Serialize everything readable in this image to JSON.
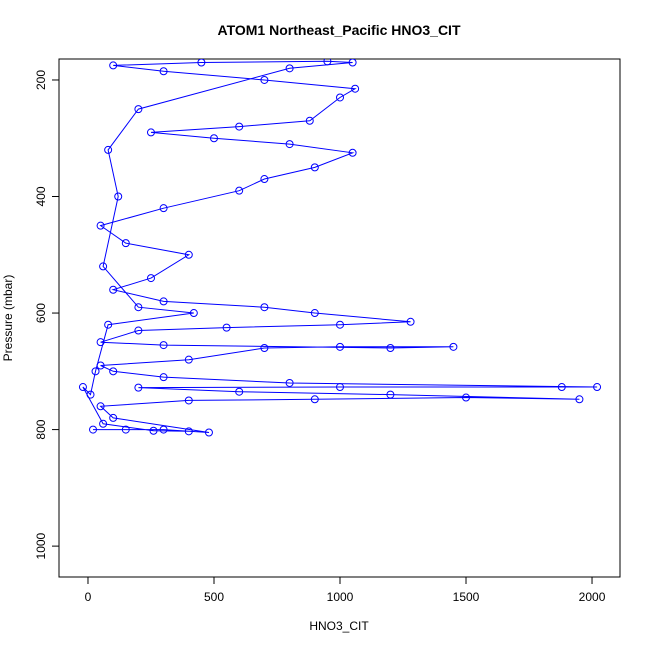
{
  "chart_data": {
    "type": "line",
    "title": "ATOM1 Northeast_Pacific HNO3_CIT",
    "x_label": "HNO3_CIT",
    "y_label": "Pressure (mbar)",
    "xlim": [
      -115,
      2111
    ],
    "ylim": [
      164,
      1053
    ],
    "y_reversed": true,
    "xticks": [
      0,
      500,
      1000,
      1500,
      2000
    ],
    "yticks": [
      200,
      400,
      600,
      800,
      1000
    ],
    "markers": true,
    "series": [
      {
        "color": "#0000ff",
        "x": [
          20,
          150,
          300,
          480,
          100,
          50,
          400,
          900,
          1500,
          1950,
          1200,
          600,
          200,
          1000,
          1880,
          2020,
          800,
          300,
          100,
          50,
          400,
          700,
          1000,
          1450,
          1200,
          300,
          50,
          200,
          550,
          1000,
          1280,
          900,
          700,
          300,
          100,
          250,
          400,
          150,
          50,
          300,
          600,
          700,
          900,
          1050,
          800,
          500,
          250,
          600,
          880,
          1000,
          1060,
          700,
          300,
          100,
          450,
          950,
          1050,
          800,
          200,
          80,
          120,
          60,
          200,
          420,
          80,
          30,
          10,
          -20,
          60,
          260,
          400
        ],
        "values": [
          800,
          800,
          800,
          805,
          780,
          760,
          750,
          748,
          745,
          748,
          740,
          735,
          728,
          727,
          727,
          727,
          720,
          710,
          700,
          690,
          680,
          660,
          658,
          658,
          660,
          655,
          650,
          630,
          625,
          620,
          615,
          600,
          590,
          580,
          560,
          540,
          500,
          480,
          450,
          420,
          390,
          370,
          350,
          325,
          310,
          300,
          290,
          280,
          270,
          230,
          215,
          200,
          185,
          175,
          170,
          168,
          170,
          180,
          250,
          320,
          400,
          520,
          590,
          600,
          620,
          700,
          740,
          727,
          790,
          802,
          803
        ]
      }
    ]
  }
}
